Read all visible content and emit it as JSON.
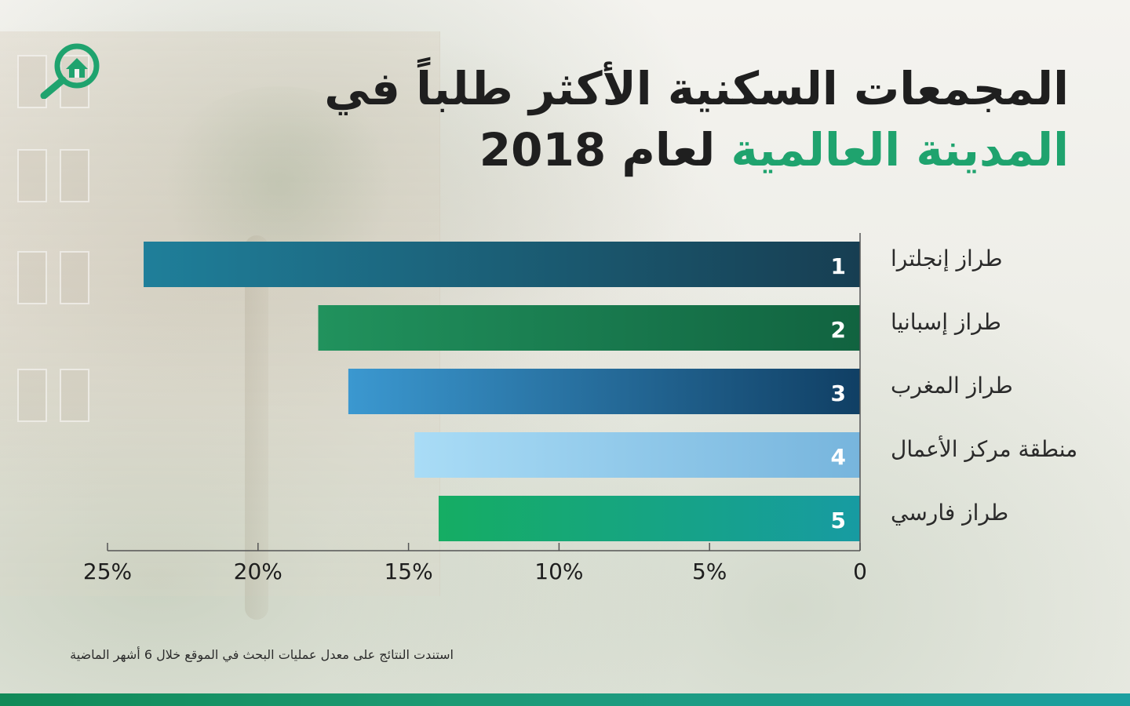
{
  "header": {
    "title_line1": "المجمعات السكنية الأكثر طلباً في",
    "title_line2_accent": "المدينة العالمية",
    "title_line2_rest": "لعام 2018"
  },
  "logo": {
    "icon_name": "house-search-icon",
    "color": "#1fa36e"
  },
  "chart_data": {
    "type": "bar",
    "orientation": "horizontal",
    "x_direction": "right-to-left",
    "categories": [
      "طراز إنجلترا",
      "طراز إسبانيا",
      "طراز المغرب",
      "منطقة مركز الأعمال",
      "طراز فارسي"
    ],
    "ranks": [
      "1",
      "2",
      "3",
      "4",
      "5"
    ],
    "values": [
      23.8,
      18.0,
      17.0,
      14.8,
      14.0
    ],
    "xlim": [
      0,
      25
    ],
    "ticks": [
      0,
      5,
      10,
      15,
      20,
      25
    ],
    "tick_labels": [
      "0",
      "5%",
      "10%",
      "15%",
      "20%",
      "25%"
    ],
    "bar_colors": [
      [
        "#1f7f9a",
        "#173e52"
      ],
      [
        "#21925d",
        "#116340"
      ],
      [
        "#3b98d0",
        "#103f64"
      ],
      [
        "#a9dcf6",
        "#77b5dd"
      ],
      [
        "#15ad63",
        "#179ba2"
      ]
    ]
  },
  "footer": {
    "note": "استندت النتائج على معدل عمليات البحث في الموقع خلال 6 أشهر الماضية"
  },
  "colors": {
    "accent": "#1fa36e",
    "title": "#1f1f1f"
  }
}
